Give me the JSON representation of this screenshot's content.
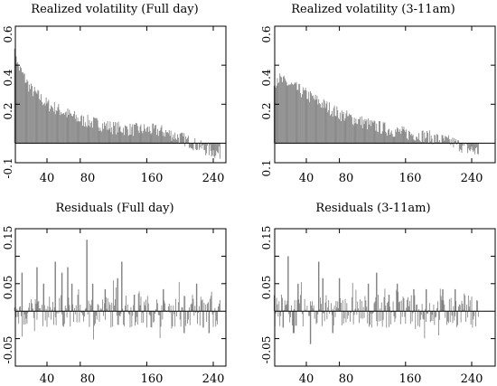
{
  "chart_data": [
    {
      "type": "bar",
      "title": "Realized volatility (Full day)",
      "xlabel": "",
      "ylabel": "",
      "xlim": [
        0,
        260
      ],
      "ylim": [
        -0.1,
        0.6
      ],
      "yticks": [
        "-0.1",
        "0.2",
        "0.4",
        "0.6"
      ],
      "xticks": [
        "40",
        "80",
        "160",
        "240"
      ],
      "baseline": 0,
      "bar_color": "#808080",
      "profile": [
        [
          1,
          0.52
        ],
        [
          5,
          0.4
        ],
        [
          10,
          0.36
        ],
        [
          20,
          0.28
        ],
        [
          40,
          0.2
        ],
        [
          60,
          0.16
        ],
        [
          80,
          0.12
        ],
        [
          100,
          0.1
        ],
        [
          120,
          0.08
        ],
        [
          140,
          0.07
        ],
        [
          160,
          0.07
        ],
        [
          180,
          0.06
        ],
        [
          200,
          0.03
        ],
        [
          215,
          0.0
        ],
        [
          230,
          -0.03
        ],
        [
          245,
          -0.05
        ]
      ]
    },
    {
      "type": "bar",
      "title": "Realized volatility (3-11am)",
      "xlabel": "",
      "ylabel": "",
      "xlim": [
        0,
        260
      ],
      "ylim": [
        -0.1,
        0.6
      ],
      "yticks": [
        "0.1",
        "0.2",
        "0.4",
        "0.6"
      ],
      "xticks": [
        "40",
        "80",
        "160",
        "240"
      ],
      "baseline": 0,
      "bar_color": "#808080",
      "profile": [
        [
          1,
          0.3
        ],
        [
          5,
          0.34
        ],
        [
          10,
          0.32
        ],
        [
          20,
          0.3
        ],
        [
          40,
          0.25
        ],
        [
          60,
          0.2
        ],
        [
          80,
          0.15
        ],
        [
          100,
          0.12
        ],
        [
          120,
          0.09
        ],
        [
          140,
          0.07
        ],
        [
          160,
          0.05
        ],
        [
          180,
          0.04
        ],
        [
          200,
          0.02
        ],
        [
          220,
          0.0
        ],
        [
          235,
          -0.03
        ],
        [
          245,
          -0.04
        ]
      ]
    },
    {
      "type": "bar",
      "title": "Residuals (Full day)",
      "xlabel": "",
      "ylabel": "",
      "xlim": [
        0,
        260
      ],
      "ylim": [
        -0.1,
        0.15
      ],
      "yticks": [
        "-0.05",
        "0.05",
        "0.15"
      ],
      "yticks_unlabeled": [
        -0.1,
        0.1
      ],
      "xticks": [
        "40",
        "80",
        "160",
        "240"
      ],
      "baseline": 0,
      "bar_color": "#808080",
      "spikes": [
        [
          10,
          0.07
        ],
        [
          28,
          0.08
        ],
        [
          36,
          0.05
        ],
        [
          50,
          0.09
        ],
        [
          58,
          0.07
        ],
        [
          65,
          0.08
        ],
        [
          70,
          0.05
        ],
        [
          88,
          0.13
        ],
        [
          95,
          0.05
        ],
        [
          110,
          0.04
        ],
        [
          125,
          0.06
        ],
        [
          130,
          0.09
        ],
        [
          145,
          0.03
        ],
        [
          180,
          0.04
        ],
        [
          205,
          -0.04
        ],
        [
          220,
          0.05
        ],
        [
          228,
          -0.03
        ],
        [
          235,
          -0.04
        ]
      ]
    },
    {
      "type": "bar",
      "title": "Residuals (3-11am)",
      "xlabel": "",
      "ylabel": "",
      "xlim": [
        0,
        260
      ],
      "ylim": [
        -0.1,
        0.15
      ],
      "yticks": [
        "-0.05",
        "0.05",
        "0.15"
      ],
      "yticks_unlabeled": [
        -0.1,
        0.1
      ],
      "xticks": [
        "40",
        "80",
        "160",
        "240"
      ],
      "baseline": 0,
      "bar_color": "#808080",
      "spikes": [
        [
          12,
          -0.03
        ],
        [
          18,
          0.1
        ],
        [
          25,
          -0.04
        ],
        [
          30,
          0.05
        ],
        [
          45,
          -0.06
        ],
        [
          55,
          0.09
        ],
        [
          60,
          0.06
        ],
        [
          72,
          -0.04
        ],
        [
          80,
          0.06
        ],
        [
          115,
          0.05
        ],
        [
          125,
          0.07
        ],
        [
          140,
          0.03
        ],
        [
          150,
          0.05
        ],
        [
          170,
          0.04
        ],
        [
          185,
          0.04
        ],
        [
          205,
          0.04
        ],
        [
          220,
          0.04
        ]
      ]
    }
  ]
}
